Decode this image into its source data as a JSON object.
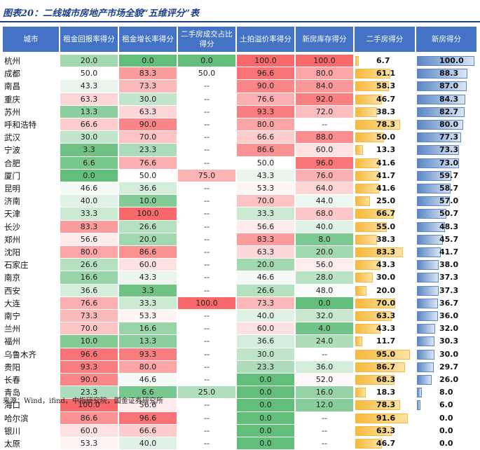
{
  "title": "图表20：二线城市房地产市场全貌“五维评分”表",
  "source": "来源：Wind，ifind，中指研究院，国金证券研究所",
  "colors": {
    "header": "#4472c4",
    "low": "#63be7b",
    "mid": "#ffffff",
    "high": "#f8696b",
    "secondhand_bar": "#f6b93b",
    "newhome_bar": "#5b87c5"
  },
  "chart_data": {
    "type": "table",
    "columns": [
      "城市",
      "租金回报率得分",
      "租金增长率得分",
      "二手房成交占比得分",
      "土拍溢价率得分",
      "新房库存得分",
      "二手房得分",
      "新房得分"
    ],
    "rows": [
      {
        "city": "杭州",
        "rent_return": "20.0",
        "rent_growth": "0.0",
        "secondhand_share": "0.0",
        "land_premium": "100.0",
        "new_inventory": "100.0",
        "secondhand_score": 6.7,
        "newhome_score": 100.0
      },
      {
        "city": "成都",
        "rent_return": "50.0",
        "rent_growth": "83.3",
        "secondhand_share": "50.0",
        "land_premium": "96.6",
        "new_inventory": "80.0",
        "secondhand_score": 61.1,
        "newhome_score": 88.3
      },
      {
        "city": "南昌",
        "rent_return": "43.3",
        "rent_growth": "73.3",
        "secondhand_share": "--",
        "land_premium": "90.0",
        "new_inventory": "84.0",
        "secondhand_score": 58.3,
        "newhome_score": 87.0
      },
      {
        "city": "重庆",
        "rent_return": "63.3",
        "rent_growth": "30.0",
        "secondhand_share": "--",
        "land_premium": "76.6",
        "new_inventory": "92.0",
        "secondhand_score": 46.7,
        "newhome_score": 84.3
      },
      {
        "city": "苏州",
        "rent_return": "13.3",
        "rent_growth": "63.3",
        "secondhand_share": "--",
        "land_premium": "93.3",
        "new_inventory": "72.0",
        "secondhand_score": 38.3,
        "newhome_score": 82.7
      },
      {
        "city": "呼和浩特",
        "rent_return": "66.6",
        "rent_growth": "90.0",
        "secondhand_share": "--",
        "land_premium": "80.0",
        "new_inventory": "--",
        "secondhand_score": 78.3,
        "newhome_score": 80.0
      },
      {
        "city": "武汉",
        "rent_return": "30.0",
        "rent_growth": "70.0",
        "secondhand_share": "--",
        "land_premium": "66.6",
        "new_inventory": "88.0",
        "secondhand_score": 50.0,
        "newhome_score": 77.3
      },
      {
        "city": "宁波",
        "rent_return": "3.3",
        "rent_growth": "23.3",
        "secondhand_share": "--",
        "land_premium": "86.6",
        "new_inventory": "60.0",
        "secondhand_score": 13.3,
        "newhome_score": 73.3
      },
      {
        "city": "合肥",
        "rent_return": "6.6",
        "rent_growth": "76.6",
        "secondhand_share": "--",
        "land_premium": "50.0",
        "new_inventory": "96.0",
        "secondhand_score": 41.6,
        "newhome_score": 73.0
      },
      {
        "city": "厦门",
        "rent_return": "0.0",
        "rent_growth": "50.0",
        "secondhand_share": "75.0",
        "land_premium": "43.3",
        "new_inventory": "76.0",
        "secondhand_score": 41.7,
        "newhome_score": 59.7
      },
      {
        "city": "昆明",
        "rent_return": "46.6",
        "rent_growth": "36.6",
        "secondhand_share": "--",
        "land_premium": "53.3",
        "new_inventory": "64.0",
        "secondhand_score": 41.6,
        "newhome_score": 58.7
      },
      {
        "city": "济南",
        "rent_return": "40.0",
        "rent_growth": "10.0",
        "secondhand_share": "--",
        "land_premium": "70.0",
        "new_inventory": "44.0",
        "secondhand_score": 25.0,
        "newhome_score": 57.0
      },
      {
        "city": "天津",
        "rent_return": "33.3",
        "rent_growth": "100.0",
        "secondhand_share": "--",
        "land_premium": "33.3",
        "new_inventory": "68.0",
        "secondhand_score": 66.7,
        "newhome_score": 50.7
      },
      {
        "city": "长沙",
        "rent_return": "83.3",
        "rent_growth": "26.6",
        "secondhand_share": "--",
        "land_premium": "56.6",
        "new_inventory": "40.0",
        "secondhand_score": 55.0,
        "newhome_score": 48.3
      },
      {
        "city": "郑州",
        "rent_return": "56.6",
        "rent_growth": "20.0",
        "secondhand_share": "--",
        "land_premium": "83.3",
        "new_inventory": "8.0",
        "secondhand_score": 38.3,
        "newhome_score": 45.7
      },
      {
        "city": "沈阳",
        "rent_return": "80.0",
        "rent_growth": "86.6",
        "secondhand_share": "--",
        "land_premium": "63.3",
        "new_inventory": "20.0",
        "secondhand_score": 83.3,
        "newhome_score": 41.7
      },
      {
        "city": "石家庄",
        "rent_return": "26.6",
        "rent_growth": "60.0",
        "secondhand_share": "--",
        "land_premium": "20.0",
        "new_inventory": "56.0",
        "secondhand_score": 43.3,
        "newhome_score": 38.0
      },
      {
        "city": "南京",
        "rent_return": "16.6",
        "rent_growth": "43.3",
        "secondhand_share": "--",
        "land_premium": "46.6",
        "new_inventory": "28.0",
        "secondhand_score": 30.0,
        "newhome_score": 37.3
      },
      {
        "city": "西安",
        "rent_return": "36.6",
        "rent_growth": "3.3",
        "secondhand_share": "--",
        "land_premium": "26.6",
        "new_inventory": "48.0",
        "secondhand_score": 20.0,
        "newhome_score": 37.3
      },
      {
        "city": "大连",
        "rent_return": "76.6",
        "rent_growth": "33.3",
        "secondhand_share": "100.0",
        "land_premium": "73.3",
        "new_inventory": "0.0",
        "secondhand_score": 70.0,
        "newhome_score": 36.7
      },
      {
        "city": "南宁",
        "rent_return": "73.3",
        "rent_growth": "53.3",
        "secondhand_share": "--",
        "land_premium": "40.0",
        "new_inventory": "32.0",
        "secondhand_score": 63.3,
        "newhome_score": 36.0
      },
      {
        "city": "兰州",
        "rent_return": "70.0",
        "rent_growth": "16.6",
        "secondhand_share": "--",
        "land_premium": "60.0",
        "new_inventory": "4.0",
        "secondhand_score": 43.3,
        "newhome_score": 32.0
      },
      {
        "city": "福州",
        "rent_return": "10.0",
        "rent_growth": "13.3",
        "secondhand_share": "--",
        "land_premium": "36.6",
        "new_inventory": "24.0",
        "secondhand_score": 11.7,
        "newhome_score": 30.3
      },
      {
        "city": "乌鲁木齐",
        "rent_return": "96.6",
        "rent_growth": "93.3",
        "secondhand_share": "--",
        "land_premium": "30.0",
        "new_inventory": "--",
        "secondhand_score": 95.0,
        "newhome_score": 30.0
      },
      {
        "city": "贵阳",
        "rent_return": "93.3",
        "rent_growth": "80.0",
        "secondhand_share": "--",
        "land_premium": "23.3",
        "new_inventory": "36.0",
        "secondhand_score": 86.7,
        "newhome_score": 29.7
      },
      {
        "city": "长春",
        "rent_return": "90.0",
        "rent_growth": "46.6",
        "secondhand_share": "--",
        "land_premium": "0.0",
        "new_inventory": "52.0",
        "secondhand_score": 68.3,
        "newhome_score": 26.0
      },
      {
        "city": "青岛",
        "rent_return": "23.3",
        "rent_growth": "6.6",
        "secondhand_share": "25.0",
        "land_premium": "0.0",
        "new_inventory": "16.0",
        "secondhand_score": 18.3,
        "newhome_score": 8.0
      },
      {
        "city": "海口",
        "rent_return": "100.0",
        "rent_growth": "56.6",
        "secondhand_share": "--",
        "land_premium": "0.0",
        "new_inventory": "12.0",
        "secondhand_score": 78.3,
        "newhome_score": 6.0
      },
      {
        "city": "哈尔滨",
        "rent_return": "86.6",
        "rent_growth": "96.6",
        "secondhand_share": "--",
        "land_premium": "0.0",
        "new_inventory": "--",
        "secondhand_score": 91.6,
        "newhome_score": 0.0
      },
      {
        "city": "银川",
        "rent_return": "60.0",
        "rent_growth": "66.6",
        "secondhand_share": "--",
        "land_premium": "0.0",
        "new_inventory": "--",
        "secondhand_score": 63.3,
        "newhome_score": 0.0
      },
      {
        "city": "太原",
        "rent_return": "53.3",
        "rent_growth": "40.0",
        "secondhand_share": "--",
        "land_premium": "0.0",
        "new_inventory": "--",
        "secondhand_score": 46.7,
        "newhome_score": 0.0
      }
    ]
  }
}
